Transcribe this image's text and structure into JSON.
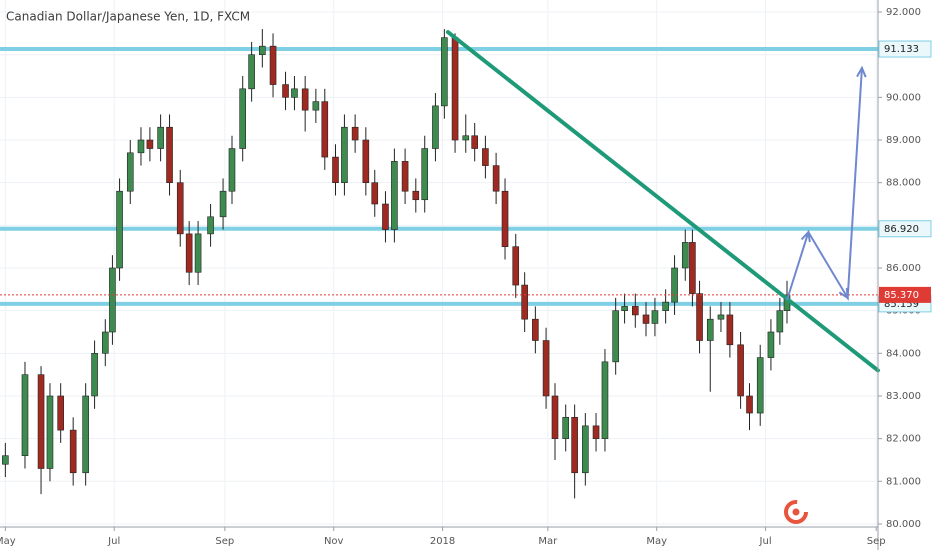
{
  "chart_data": {
    "type": "candlestick",
    "title": "Canadian Dollar/Japanese Yen, 1D, FXCM",
    "x": [
      0,
      11,
      20,
      25,
      31,
      38,
      45,
      50,
      56,
      60,
      64,
      70,
      76,
      81,
      87,
      92,
      98,
      103,
      108,
      115,
      122,
      127,
      133,
      138,
      144,
      150,
      157,
      162,
      168,
      174,
      179,
      185,
      190,
      196,
      202,
      207,
      213,
      218,
      224,
      230,
      235,
      241,
      246,
      252,
      258,
      263,
      269,
      275,
      280,
      286,
      291,
      297,
      303,
      308,
      314,
      319,
      325,
      331,
      336,
      342,
      347,
      353,
      359,
      364,
      370,
      375,
      381,
      385,
      389,
      395,
      401,
      406,
      412,
      417,
      423,
      429,
      434,
      438
    ],
    "open": [
      81.4,
      81.6,
      83.5,
      81.3,
      83.0,
      82.2,
      81.2,
      83.0,
      84.0,
      84.5,
      86.0,
      87.8,
      88.7,
      89.0,
      88.8,
      89.3,
      88.0,
      86.8,
      85.9,
      86.8,
      87.2,
      87.8,
      88.8,
      90.2,
      91.0,
      91.2,
      90.3,
      90.0,
      90.2,
      89.7,
      89.9,
      88.6,
      88.0,
      89.3,
      89.0,
      88.0,
      87.5,
      86.9,
      88.5,
      87.8,
      87.6,
      88.8,
      89.8,
      91.4,
      89.0,
      89.1,
      88.8,
      88.4,
      87.8,
      86.5,
      85.6,
      84.8,
      84.3,
      83.0,
      82.0,
      82.5,
      81.2,
      82.3,
      82.0,
      83.8,
      85.0,
      85.1,
      84.9,
      84.7,
      85.0,
      85.2,
      86.0,
      86.6,
      85.4,
      84.3,
      84.8,
      84.9,
      84.2,
      83.0,
      82.6,
      83.9,
      84.5,
      85.0
    ],
    "high": [
      81.9,
      83.8,
      83.7,
      83.3,
      83.3,
      82.5,
      83.3,
      84.3,
      84.8,
      86.3,
      88.1,
      89.0,
      89.3,
      89.3,
      89.6,
      89.6,
      88.3,
      87.1,
      87.1,
      87.5,
      88.1,
      89.1,
      90.5,
      91.3,
      91.6,
      91.5,
      90.6,
      90.5,
      90.5,
      90.2,
      90.2,
      88.9,
      89.6,
      89.6,
      89.3,
      88.3,
      87.8,
      88.8,
      88.8,
      88.1,
      89.1,
      90.1,
      91.6,
      91.5,
      89.6,
      89.4,
      89.1,
      88.7,
      88.1,
      86.8,
      85.9,
      85.1,
      84.6,
      83.3,
      82.8,
      82.8,
      82.6,
      82.6,
      84.1,
      85.3,
      85.4,
      85.4,
      85.2,
      85.3,
      85.5,
      86.3,
      86.9,
      86.9,
      85.7,
      85.1,
      85.2,
      85.2,
      84.5,
      83.3,
      84.2,
      84.8,
      85.3,
      85.7
    ],
    "low": [
      81.1,
      81.3,
      80.7,
      81.0,
      81.9,
      80.9,
      80.9,
      82.7,
      83.7,
      84.2,
      85.7,
      87.5,
      88.4,
      88.5,
      88.5,
      87.7,
      86.5,
      85.6,
      85.6,
      86.5,
      86.9,
      87.5,
      88.5,
      89.9,
      90.7,
      90.0,
      89.7,
      89.7,
      89.2,
      89.4,
      88.3,
      87.7,
      87.7,
      88.7,
      87.7,
      87.2,
      86.6,
      86.6,
      87.5,
      87.3,
      87.3,
      88.5,
      89.5,
      88.7,
      88.7,
      88.5,
      88.1,
      87.5,
      86.2,
      85.3,
      84.5,
      84.0,
      82.7,
      81.5,
      81.7,
      80.6,
      80.9,
      81.7,
      81.7,
      83.5,
      84.7,
      84.6,
      84.4,
      84.4,
      84.7,
      84.9,
      85.7,
      85.1,
      84.0,
      83.1,
      84.5,
      83.9,
      82.7,
      82.2,
      82.3,
      83.6,
      84.2,
      84.7
    ],
    "close": [
      81.6,
      83.5,
      81.3,
      83.0,
      82.2,
      81.2,
      83.0,
      84.0,
      84.5,
      86.0,
      87.8,
      88.7,
      89.0,
      88.8,
      89.3,
      88.0,
      86.8,
      85.9,
      86.8,
      87.2,
      87.8,
      88.8,
      90.2,
      91.0,
      91.2,
      90.3,
      90.0,
      90.2,
      89.7,
      89.9,
      88.6,
      88.0,
      89.3,
      89.0,
      88.0,
      87.5,
      86.9,
      88.5,
      87.8,
      87.6,
      88.8,
      89.8,
      91.4,
      89.0,
      89.1,
      88.8,
      88.4,
      87.8,
      86.5,
      85.6,
      84.8,
      84.3,
      83.0,
      82.0,
      82.5,
      81.2,
      82.3,
      82.0,
      83.8,
      85.0,
      85.1,
      84.9,
      84.7,
      85.0,
      85.2,
      86.0,
      86.6,
      85.4,
      84.3,
      84.8,
      84.9,
      84.2,
      83.0,
      82.6,
      83.9,
      84.5,
      85.0,
      85.37
    ],
    "up_color": "#3d8b4f",
    "down_color": "#9e2a22",
    "xlim": [
      -3,
      489
    ],
    "ylim": [
      79.8,
      92.2
    ],
    "xticks": [
      {
        "value": 0,
        "label": "May"
      },
      {
        "value": 61,
        "label": "Jul"
      },
      {
        "value": 123,
        "label": "Sep"
      },
      {
        "value": 184,
        "label": "Nov"
      },
      {
        "value": 245,
        "label": "2018"
      },
      {
        "value": 304,
        "label": "Mar"
      },
      {
        "value": 365,
        "label": "May"
      },
      {
        "value": 426,
        "label": "Jul"
      },
      {
        "value": 488,
        "label": "Sep"
      }
    ],
    "yticks": [
      {
        "value": 80,
        "label": "80.000"
      },
      {
        "value": 81,
        "label": "81.000"
      },
      {
        "value": 82,
        "label": "82.000"
      },
      {
        "value": 83,
        "label": "83.000"
      },
      {
        "value": 84,
        "label": "84.000"
      },
      {
        "value": 85,
        "label": "85.000"
      },
      {
        "value": 86,
        "label": "86.000"
      },
      {
        "value": 87,
        "label": "87.000"
      },
      {
        "value": 88,
        "label": "88.000"
      },
      {
        "value": 89,
        "label": "89.000"
      },
      {
        "value": 90,
        "label": "90.000"
      },
      {
        "value": 91,
        "label": "91.000"
      },
      {
        "value": 92,
        "label": "92.000"
      }
    ],
    "grid": true,
    "levels": [
      91.133,
      {
        "value": 86.92,
        "label": "86.920"
      },
      85.159
    ],
    "level_color": "#7fd0e4",
    "last_price": {
      "value": 85.37,
      "label": "85.370"
    },
    "last_price_color": "#e03a34",
    "trendline": {
      "x": [
        248,
        489
      ],
      "y": [
        91.53,
        83.6
      ],
      "color": "#1f9a78"
    },
    "projection": {
      "x": [
        438,
        450,
        472,
        480
      ],
      "y": [
        85.25,
        86.84,
        85.3,
        90.69
      ],
      "color": "#7088cf"
    }
  }
}
